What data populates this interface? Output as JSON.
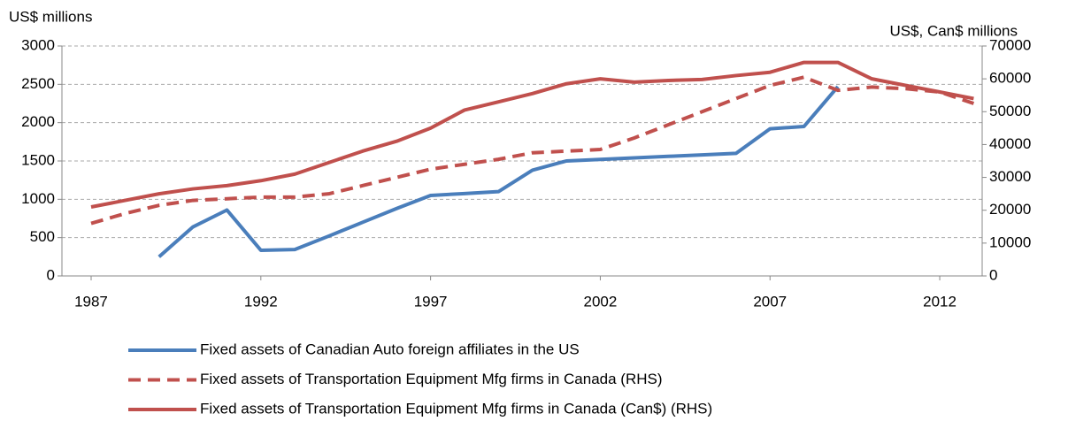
{
  "chart_data": {
    "type": "line",
    "y_label": "US$ millions",
    "y2_label": "US$, Can$ millions",
    "x": [
      1987,
      1988,
      1989,
      1990,
      1991,
      1992,
      1993,
      1994,
      1995,
      1996,
      1997,
      1998,
      1999,
      2000,
      2001,
      2002,
      2003,
      2004,
      2005,
      2006,
      2007,
      2008,
      2009,
      2010,
      2011,
      2012,
      2013
    ],
    "xlim": [
      1986.14,
      2013.25
    ],
    "xticks": [
      1987,
      1992,
      1997,
      2002,
      2007,
      2012
    ],
    "ylim": [
      0,
      3000
    ],
    "yticks": [
      0,
      500,
      1000,
      1500,
      2000,
      2500,
      3000
    ],
    "y2lim": [
      0,
      70000
    ],
    "y2ticks": [
      0,
      10000,
      20000,
      30000,
      40000,
      50000,
      60000,
      70000
    ],
    "grid": true,
    "series": [
      {
        "name": "Fixed assets of Canadian Auto foreign affiliates in the US",
        "color": "#4a7ebb",
        "style": "solid",
        "values": [
          null,
          null,
          250,
          640,
          860,
          335,
          345,
          520,
          700,
          880,
          1050,
          1075,
          1100,
          1380,
          1500,
          1520,
          1540,
          1560,
          1580,
          1600,
          1920,
          1950,
          2470,
          null,
          null,
          null,
          null
        ]
      },
      {
        "name": "Fixed assets of Transportation Equipment Mfg firms in Canada (RHS)",
        "color": "#c0504d",
        "style": "dashed",
        "axis": "y2",
        "values": [
          16000,
          19000,
          21500,
          23000,
          23500,
          24000,
          24000,
          25000,
          27500,
          30000,
          32500,
          34000,
          35500,
          37500,
          38000,
          38500,
          42000,
          46000,
          50000,
          54000,
          58000,
          60500,
          56500,
          57500,
          57000,
          56000,
          52500
        ]
      },
      {
        "name": "Fixed assets of Transportation Equipment Mfg firms in Canada (Can$) (RHS)",
        "color": "#c0504d",
        "style": "solid",
        "axis": "y2",
        "values": [
          21000,
          23000,
          25000,
          26500,
          27500,
          29000,
          31000,
          34500,
          38000,
          41000,
          45000,
          50500,
          53000,
          55500,
          58500,
          60000,
          59000,
          59500,
          59800,
          61000,
          62000,
          65000,
          65000,
          60000,
          58000,
          56000,
          54000
        ]
      }
    ]
  }
}
